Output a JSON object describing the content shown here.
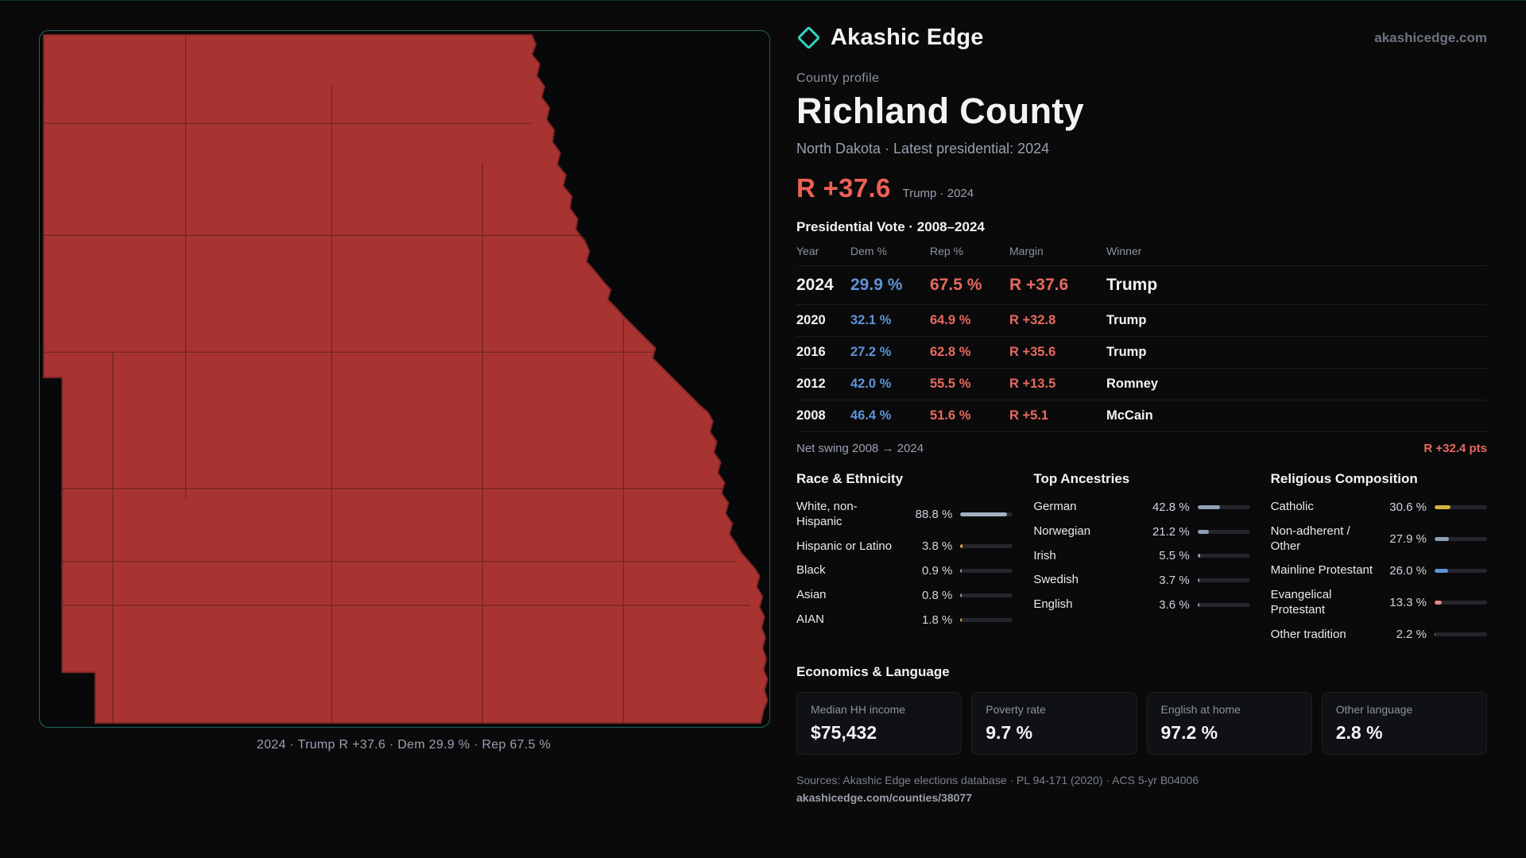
{
  "brand": {
    "name": "Akashic Edge",
    "domain": "akashicedge.com"
  },
  "profile": {
    "eyebrow": "County profile",
    "title": "Richland County",
    "subtitle": "North Dakota · Latest presidential: 2024",
    "headline_margin": "R +37.6",
    "headline_note": "Trump · 2024"
  },
  "map": {
    "fill": "#a83431",
    "caption": "2024 · Trump R +37.6 · Dem 29.9 % · Rep 67.5 %"
  },
  "vote_table": {
    "title": "Presidential Vote · 2008–2024",
    "columns": {
      "year": "Year",
      "dem": "Dem %",
      "rep": "Rep %",
      "margin": "Margin",
      "winner": "Winner"
    },
    "rows": [
      {
        "year": "2024",
        "dem": "29.9 %",
        "rep": "67.5 %",
        "margin": "R +37.6",
        "winner": "Trump"
      },
      {
        "year": "2020",
        "dem": "32.1 %",
        "rep": "64.9 %",
        "margin": "R +32.8",
        "winner": "Trump"
      },
      {
        "year": "2016",
        "dem": "27.2 %",
        "rep": "62.8 %",
        "margin": "R +35.6",
        "winner": "Trump"
      },
      {
        "year": "2012",
        "dem": "42.0 %",
        "rep": "55.5 %",
        "margin": "R +13.5",
        "winner": "Romney"
      },
      {
        "year": "2008",
        "dem": "46.4 %",
        "rep": "51.6 %",
        "margin": "R +5.1",
        "winner": "McCain"
      }
    ]
  },
  "net_swing": {
    "label": "Net swing 2008 → 2024",
    "value": "R +32.4 pts"
  },
  "race": {
    "title": "Race & Ethnicity",
    "items": [
      {
        "label": "White, non-Hispanic",
        "value": "88.8 %",
        "pct": 88.8,
        "color": "#9fb0c2"
      },
      {
        "label": "Hispanic or Latino",
        "value": "3.8 %",
        "pct": 3.8,
        "color": "#d9a441"
      },
      {
        "label": "Black",
        "value": "0.9 %",
        "pct": 0.9,
        "color": "#8fa0b4"
      },
      {
        "label": "Asian",
        "value": "0.8 %",
        "pct": 0.8,
        "color": "#8fa0b4"
      },
      {
        "label": "AIAN",
        "value": "1.8 %",
        "pct": 1.8,
        "color": "#d9a441"
      }
    ]
  },
  "ancestries": {
    "title": "Top Ancestries",
    "items": [
      {
        "label": "German",
        "value": "42.8 %",
        "pct": 42.8,
        "color": "#8fa0b4"
      },
      {
        "label": "Norwegian",
        "value": "21.2 %",
        "pct": 21.2,
        "color": "#8fa0b4"
      },
      {
        "label": "Irish",
        "value": "5.5 %",
        "pct": 5.5,
        "color": "#8fa0b4"
      },
      {
        "label": "Swedish",
        "value": "3.7 %",
        "pct": 3.7,
        "color": "#8fa0b4"
      },
      {
        "label": "English",
        "value": "3.6 %",
        "pct": 3.6,
        "color": "#8fa0b4"
      }
    ]
  },
  "religion": {
    "title": "Religious Composition",
    "items": [
      {
        "label": "Catholic",
        "value": "30.6 %",
        "pct": 30.6,
        "color": "#d4b341"
      },
      {
        "label": "Non-adherent / Other",
        "value": "27.9 %",
        "pct": 27.9,
        "color": "#8fa0b4"
      },
      {
        "label": "Mainline Protestant",
        "value": "26.0 %",
        "pct": 26.0,
        "color": "#5f93d8"
      },
      {
        "label": "Evangelical Protestant",
        "value": "13.3 %",
        "pct": 13.3,
        "color": "#e88787"
      },
      {
        "label": "Other tradition",
        "value": "2.2 %",
        "pct": 2.2,
        "color": "#8fa0b4"
      }
    ]
  },
  "economics": {
    "title": "Economics & Language",
    "stats": [
      {
        "label": "Median HH income",
        "value": "$75,432"
      },
      {
        "label": "Poverty rate",
        "value": "9.7 %"
      },
      {
        "label": "English at home",
        "value": "97.2 %"
      },
      {
        "label": "Other language",
        "value": "2.8 %"
      }
    ]
  },
  "footer": {
    "sources": "Sources: Akashic Edge elections database · PL 94-171 (2020) · ACS 5-yr B04006",
    "permalink": "akashicedge.com/counties/38077"
  }
}
